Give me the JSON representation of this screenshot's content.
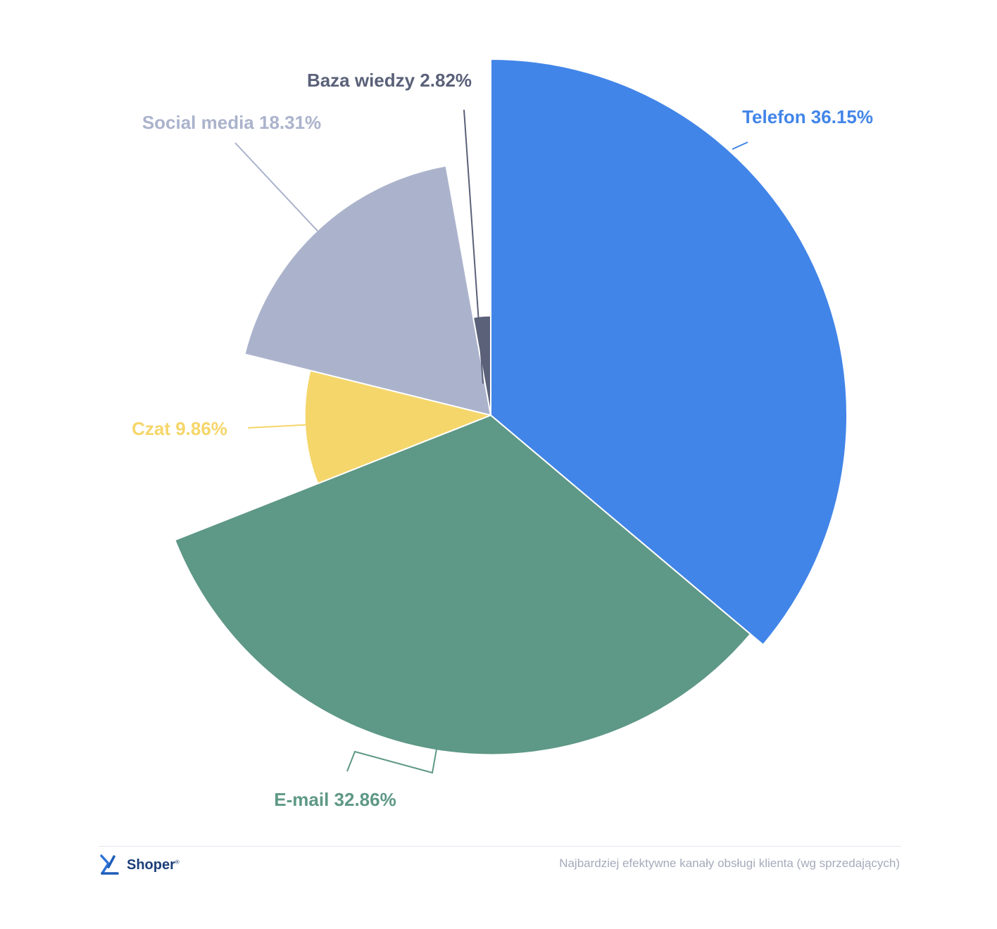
{
  "chart_data": {
    "type": "pie",
    "variant": "variable-radius",
    "categories": [
      "Telefon",
      "E-mail",
      "Czat",
      "Social media",
      "Baza wiedzy"
    ],
    "values": [
      36.15,
      32.86,
      9.86,
      18.31,
      2.82
    ],
    "labels": [
      "Telefon 36.15%",
      "E-mail 32.86%",
      "Czat 9.86%",
      "Social media 18.31%",
      "Baza wiedzy 2.82%"
    ],
    "colors": [
      "#4285e8",
      "#5e9886",
      "#f5d66a",
      "#abb3cc",
      "#5a6179"
    ],
    "start_angle": "12 o'clock",
    "direction": "clockwise"
  },
  "footer": {
    "brand": "Shoper",
    "brand_mark": "®",
    "caption": "Najbardziej efektywne kanały obsługi klienta (wg sprzedających)"
  },
  "icons": {
    "brand_logo": "shoper-logo-icon"
  }
}
